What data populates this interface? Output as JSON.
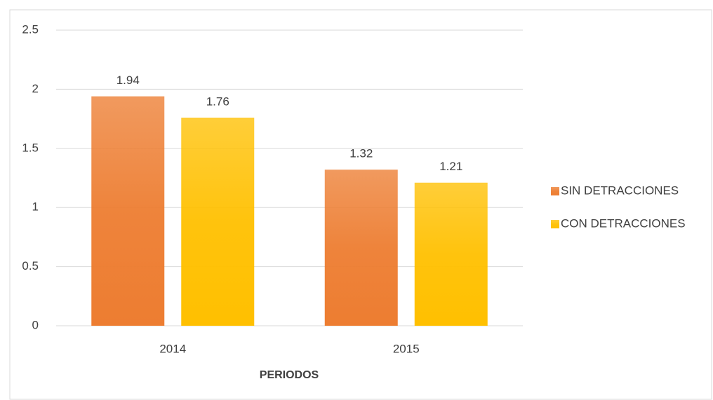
{
  "chart_data": {
    "type": "bar",
    "categories": [
      "2014",
      "2015"
    ],
    "series": [
      {
        "name": "SIN DETRACCIONES",
        "color": "#ed7d31",
        "values": [
          1.94,
          1.32
        ]
      },
      {
        "name": "CON DETRACCIONES",
        "color": "#ffc000",
        "values": [
          1.76,
          1.21
        ]
      }
    ],
    "x_label": "PERIODOS",
    "ylim": [
      0,
      2.5
    ],
    "yticks": [
      0,
      0.5,
      1,
      1.5,
      2,
      2.5
    ],
    "grid": true,
    "legend": "right"
  }
}
